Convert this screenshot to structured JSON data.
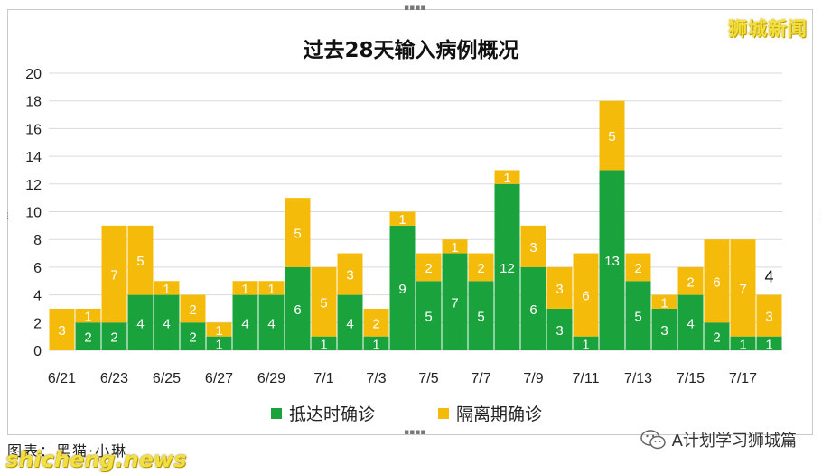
{
  "title": "过去28天输入病例概况",
  "watermark": "狮城新闻",
  "legend": {
    "series_a": "抵达时确诊",
    "series_b": "隔离期确诊"
  },
  "footer": {
    "credit": "图表：黑猫·小琳",
    "site": "shicheng.news",
    "account": "A计划学习狮城篇"
  },
  "colors": {
    "series_a": "#1aa33c",
    "series_b": "#f5bb0b",
    "grid": "#d9d9d9"
  },
  "chart_data": {
    "type": "bar",
    "stacked": true,
    "title": "过去28天输入病例概况",
    "categories": [
      "6/21",
      "6/22",
      "6/23",
      "6/24",
      "6/25",
      "6/26",
      "6/27",
      "6/28",
      "6/29",
      "6/30",
      "7/1",
      "7/2",
      "7/3",
      "7/4",
      "7/5",
      "7/6",
      "7/7",
      "7/8",
      "7/9",
      "7/10",
      "7/11",
      "7/12",
      "7/13",
      "7/14",
      "7/15",
      "7/16",
      "7/17",
      "7/18"
    ],
    "x_tick_labels": [
      "6/21",
      "6/23",
      "6/25",
      "6/27",
      "6/29",
      "7/1",
      "7/3",
      "7/5",
      "7/7",
      "7/9",
      "7/11",
      "7/13",
      "7/15",
      "7/17"
    ],
    "series": [
      {
        "name": "抵达时确诊",
        "values": [
          0,
          2,
          2,
          4,
          4,
          2,
          1,
          4,
          4,
          6,
          1,
          4,
          1,
          9,
          5,
          7,
          5,
          12,
          6,
          3,
          1,
          13,
          5,
          3,
          4,
          2,
          1,
          1
        ]
      },
      {
        "name": "隔离期确诊",
        "values": [
          3,
          1,
          7,
          5,
          1,
          2,
          1,
          1,
          1,
          5,
          5,
          3,
          2,
          1,
          2,
          1,
          2,
          1,
          3,
          3,
          6,
          5,
          2,
          1,
          2,
          6,
          7,
          3
        ]
      }
    ],
    "ylim": [
      0,
      20
    ],
    "yticks": [
      0,
      2,
      4,
      6,
      8,
      10,
      12,
      14,
      16,
      18,
      20
    ],
    "annotations": [
      {
        "category": "7/18",
        "text": "4"
      }
    ],
    "grid": true,
    "legend_position": "bottom"
  }
}
